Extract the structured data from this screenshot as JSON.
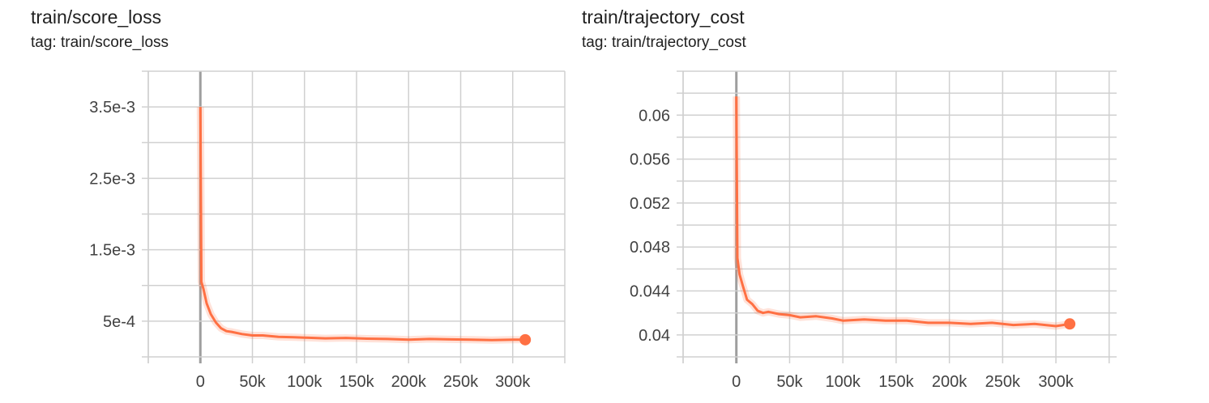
{
  "charts": [
    {
      "title": "train/score_loss",
      "tag": "tag: train/score_loss"
    },
    {
      "title": "train/trajectory_cost",
      "tag": "tag: train/trajectory_cost"
    }
  ],
  "chart_data": [
    {
      "type": "line",
      "title": "train/score_loss",
      "subtitle": "tag: train/score_loss",
      "color": "#ff7043",
      "grid": true,
      "xlim": [
        -50000,
        350000
      ],
      "ylim": [
        0,
        0.004
      ],
      "x_ticks": [
        0,
        50000,
        100000,
        150000,
        200000,
        250000,
        300000
      ],
      "x_tick_labels": [
        "0",
        "50k",
        "100k",
        "150k",
        "200k",
        "250k",
        "300k"
      ],
      "y_ticks": [
        0.0035,
        0.0025,
        0.0015,
        0.0005
      ],
      "y_tick_labels": [
        "3.5e-3",
        "2.5e-3",
        "1.5e-3",
        "5e-4"
      ],
      "x": [
        0,
        1000,
        3000,
        6000,
        10000,
        15000,
        20000,
        25000,
        30000,
        40000,
        50000,
        60000,
        75000,
        90000,
        100000,
        120000,
        140000,
        160000,
        180000,
        200000,
        220000,
        240000,
        260000,
        280000,
        300000,
        312000
      ],
      "y": [
        0.0035,
        0.00105,
        0.00095,
        0.00075,
        0.0006,
        0.00048,
        0.0004,
        0.00036,
        0.00035,
        0.00032,
        0.0003,
        0.0003,
        0.00028,
        0.000275,
        0.00027,
        0.00026,
        0.000265,
        0.000255,
        0.00025,
        0.00024,
        0.00025,
        0.000245,
        0.00024,
        0.000235,
        0.00024,
        0.00024
      ]
    },
    {
      "type": "line",
      "title": "train/trajectory_cost",
      "subtitle": "tag: train/trajectory_cost",
      "color": "#ff7043",
      "grid": true,
      "xlim": [
        -50000,
        357000
      ],
      "ylim": [
        0.038,
        0.064
      ],
      "x_ticks": [
        0,
        50000,
        100000,
        150000,
        200000,
        250000,
        300000
      ],
      "x_tick_labels": [
        "0",
        "50k",
        "100k",
        "150k",
        "200k",
        "250k",
        "300k"
      ],
      "y_ticks": [
        0.06,
        0.056,
        0.052,
        0.048,
        0.044,
        0.04
      ],
      "y_tick_labels": [
        "0.06",
        "0.056",
        "0.052",
        "0.048",
        "0.044",
        "0.04"
      ],
      "x": [
        0,
        1000,
        3000,
        6000,
        10000,
        15000,
        20000,
        25000,
        30000,
        40000,
        50000,
        60000,
        75000,
        90000,
        100000,
        120000,
        140000,
        160000,
        180000,
        200000,
        220000,
        240000,
        260000,
        280000,
        300000,
        313000
      ],
      "y": [
        0.0617,
        0.047,
        0.0455,
        0.0445,
        0.0432,
        0.0428,
        0.0422,
        0.042,
        0.0421,
        0.0419,
        0.0418,
        0.0416,
        0.0417,
        0.0415,
        0.0413,
        0.0414,
        0.0413,
        0.0413,
        0.0411,
        0.0411,
        0.041,
        0.0411,
        0.0409,
        0.041,
        0.0408,
        0.041
      ]
    }
  ]
}
